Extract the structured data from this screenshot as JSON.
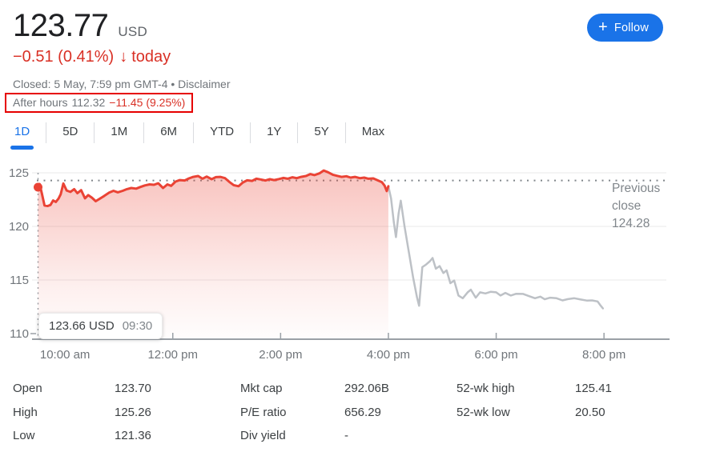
{
  "header": {
    "price": "123.77",
    "currency": "USD",
    "change": {
      "value": "−0.51 (0.41%)",
      "arrow": "↓",
      "period": "today"
    },
    "status": {
      "text": "Closed: 5 May, 7:59 pm GMT-4",
      "separator": "•",
      "link": "Disclaimer"
    },
    "after_hours": {
      "label": "After hours",
      "price": "112.32",
      "change": "−11.45 (9.25%)"
    },
    "follow": {
      "plus": "+",
      "label": "Follow"
    }
  },
  "tabs": [
    {
      "label": "1D",
      "active": true
    },
    {
      "label": "5D",
      "active": false
    },
    {
      "label": "1M",
      "active": false
    },
    {
      "label": "6M",
      "active": false
    },
    {
      "label": "YTD",
      "active": false
    },
    {
      "label": "1Y",
      "active": false
    },
    {
      "label": "5Y",
      "active": false
    },
    {
      "label": "Max",
      "active": false
    }
  ],
  "chart": {
    "tooltip": {
      "price": "123.66 USD",
      "time": "09:30"
    },
    "previous_close_label": {
      "line1": "Previous",
      "line2": "close",
      "line3": "124.28"
    }
  },
  "chart_data": {
    "type": "line",
    "title": "1D intraday price chart with after-hours session",
    "x_unit": "hour_of_day_24h",
    "xlim": [
      9.3,
      21.3
    ],
    "ylim": [
      109.4,
      125.6
    ],
    "ylabel": "",
    "xlabel": "",
    "grid": "horizontal",
    "legend": "none",
    "y_ticks": [
      125,
      120,
      115,
      110
    ],
    "x_ticks": [
      {
        "hour": 10,
        "label": "10:00 am"
      },
      {
        "hour": 12,
        "label": "12:00 pm"
      },
      {
        "hour": 14,
        "label": "2:00 pm"
      },
      {
        "hour": 16,
        "label": "4:00 pm"
      },
      {
        "hour": 18,
        "label": "6:00 pm"
      },
      {
        "hour": 20,
        "label": "8:00 pm"
      }
    ],
    "previous_close": 124.28,
    "marker": {
      "hour": 9.5,
      "value": 123.66
    },
    "series": [
      {
        "name": "market-hours",
        "color": "#ea4335",
        "fill": true,
        "points": [
          [
            9.5,
            123.66
          ],
          [
            9.53,
            123.95
          ],
          [
            9.57,
            123.1
          ],
          [
            9.62,
            121.95
          ],
          [
            9.68,
            121.9
          ],
          [
            9.73,
            122.0
          ],
          [
            9.78,
            122.42
          ],
          [
            9.83,
            122.28
          ],
          [
            9.88,
            122.6
          ],
          [
            9.92,
            123.0
          ],
          [
            9.97,
            124.0
          ],
          [
            10.03,
            123.35
          ],
          [
            10.1,
            123.22
          ],
          [
            10.17,
            123.48
          ],
          [
            10.23,
            123.1
          ],
          [
            10.3,
            123.38
          ],
          [
            10.37,
            122.62
          ],
          [
            10.43,
            122.92
          ],
          [
            10.5,
            122.68
          ],
          [
            10.57,
            122.35
          ],
          [
            10.65,
            122.6
          ],
          [
            10.73,
            122.85
          ],
          [
            10.82,
            123.15
          ],
          [
            10.9,
            123.32
          ],
          [
            10.98,
            123.18
          ],
          [
            11.07,
            123.32
          ],
          [
            11.15,
            123.48
          ],
          [
            11.23,
            123.58
          ],
          [
            11.32,
            123.52
          ],
          [
            11.4,
            123.68
          ],
          [
            11.48,
            123.82
          ],
          [
            11.57,
            123.92
          ],
          [
            11.65,
            123.88
          ],
          [
            11.73,
            124.02
          ],
          [
            11.82,
            123.58
          ],
          [
            11.9,
            123.92
          ],
          [
            11.97,
            123.78
          ],
          [
            12.05,
            124.18
          ],
          [
            12.13,
            124.32
          ],
          [
            12.22,
            124.28
          ],
          [
            12.3,
            124.48
          ],
          [
            12.38,
            124.62
          ],
          [
            12.47,
            124.7
          ],
          [
            12.55,
            124.45
          ],
          [
            12.63,
            124.65
          ],
          [
            12.72,
            124.4
          ],
          [
            12.8,
            124.6
          ],
          [
            12.88,
            124.62
          ],
          [
            12.97,
            124.5
          ],
          [
            13.05,
            124.15
          ],
          [
            13.13,
            123.85
          ],
          [
            13.22,
            123.75
          ],
          [
            13.3,
            124.1
          ],
          [
            13.38,
            124.3
          ],
          [
            13.47,
            124.25
          ],
          [
            13.55,
            124.45
          ],
          [
            13.63,
            124.38
          ],
          [
            13.72,
            124.28
          ],
          [
            13.8,
            124.4
          ],
          [
            13.88,
            124.32
          ],
          [
            13.97,
            124.42
          ],
          [
            14.05,
            124.52
          ],
          [
            14.13,
            124.45
          ],
          [
            14.22,
            124.58
          ],
          [
            14.3,
            124.5
          ],
          [
            14.38,
            124.62
          ],
          [
            14.47,
            124.7
          ],
          [
            14.55,
            124.88
          ],
          [
            14.63,
            124.78
          ],
          [
            14.72,
            124.95
          ],
          [
            14.8,
            125.22
          ],
          [
            14.88,
            125.05
          ],
          [
            14.97,
            124.82
          ],
          [
            15.05,
            124.72
          ],
          [
            15.13,
            124.62
          ],
          [
            15.22,
            124.68
          ],
          [
            15.3,
            124.55
          ],
          [
            15.38,
            124.62
          ],
          [
            15.47,
            124.5
          ],
          [
            15.55,
            124.55
          ],
          [
            15.63,
            124.45
          ],
          [
            15.72,
            124.48
          ],
          [
            15.8,
            124.3
          ],
          [
            15.88,
            124.12
          ],
          [
            15.93,
            123.8
          ],
          [
            15.97,
            123.3
          ],
          [
            16.0,
            123.75
          ]
        ]
      },
      {
        "name": "after-hours",
        "color": "#bdc1c6",
        "fill": false,
        "points": [
          [
            16.0,
            123.75
          ],
          [
            16.05,
            122.6
          ],
          [
            16.1,
            120.4
          ],
          [
            16.14,
            119.0
          ],
          [
            16.19,
            121.2
          ],
          [
            16.23,
            122.4
          ],
          [
            16.3,
            120.0
          ],
          [
            16.38,
            117.6
          ],
          [
            16.46,
            115.2
          ],
          [
            16.53,
            113.4
          ],
          [
            16.57,
            112.6
          ],
          [
            16.63,
            116.2
          ],
          [
            16.7,
            116.45
          ],
          [
            16.77,
            116.75
          ],
          [
            16.82,
            117.05
          ],
          [
            16.88,
            116.05
          ],
          [
            16.95,
            116.3
          ],
          [
            17.02,
            115.65
          ],
          [
            17.08,
            115.9
          ],
          [
            17.15,
            114.7
          ],
          [
            17.22,
            114.95
          ],
          [
            17.3,
            113.55
          ],
          [
            17.38,
            113.3
          ],
          [
            17.47,
            113.85
          ],
          [
            17.53,
            114.1
          ],
          [
            17.62,
            113.35
          ],
          [
            17.7,
            113.85
          ],
          [
            17.8,
            113.75
          ],
          [
            17.9,
            113.9
          ],
          [
            18.0,
            113.85
          ],
          [
            18.08,
            113.55
          ],
          [
            18.17,
            113.8
          ],
          [
            18.27,
            113.55
          ],
          [
            18.37,
            113.72
          ],
          [
            18.5,
            113.7
          ],
          [
            18.62,
            113.48
          ],
          [
            18.72,
            113.3
          ],
          [
            18.82,
            113.45
          ],
          [
            18.9,
            113.2
          ],
          [
            19.0,
            113.35
          ],
          [
            19.12,
            113.3
          ],
          [
            19.23,
            113.1
          ],
          [
            19.33,
            113.22
          ],
          [
            19.45,
            113.3
          ],
          [
            19.57,
            113.18
          ],
          [
            19.68,
            113.08
          ],
          [
            19.78,
            113.1
          ],
          [
            19.88,
            113.0
          ],
          [
            19.94,
            112.6
          ],
          [
            19.98,
            112.35
          ]
        ]
      }
    ]
  },
  "stats": {
    "columns": [
      {
        "rows": [
          {
            "label": "Open",
            "value": "123.70"
          },
          {
            "label": "High",
            "value": "125.26"
          },
          {
            "label": "Low",
            "value": "121.36"
          }
        ]
      },
      {
        "rows": [
          {
            "label": "Mkt cap",
            "value": "292.06B"
          },
          {
            "label": "P/E ratio",
            "value": "656.29"
          },
          {
            "label": "Div yield",
            "value": "-"
          }
        ]
      },
      {
        "rows": [
          {
            "label": "52-wk high",
            "value": "125.41"
          },
          {
            "label": "52-wk low",
            "value": "20.50"
          }
        ]
      }
    ]
  },
  "colors": {
    "accent_blue": "#1a73e8",
    "negative_red": "#d93025",
    "chart_line_red": "#ea4335",
    "after_hours_gray": "#bdc1c6",
    "annotation_red": "#e60000",
    "primary_text": "#202124",
    "secondary_text": "#5f6368",
    "muted_text": "#80868b",
    "axis_gray": "#9aa0a6",
    "grid_gray": "#ededee",
    "divider_gray": "#dadce0"
  }
}
